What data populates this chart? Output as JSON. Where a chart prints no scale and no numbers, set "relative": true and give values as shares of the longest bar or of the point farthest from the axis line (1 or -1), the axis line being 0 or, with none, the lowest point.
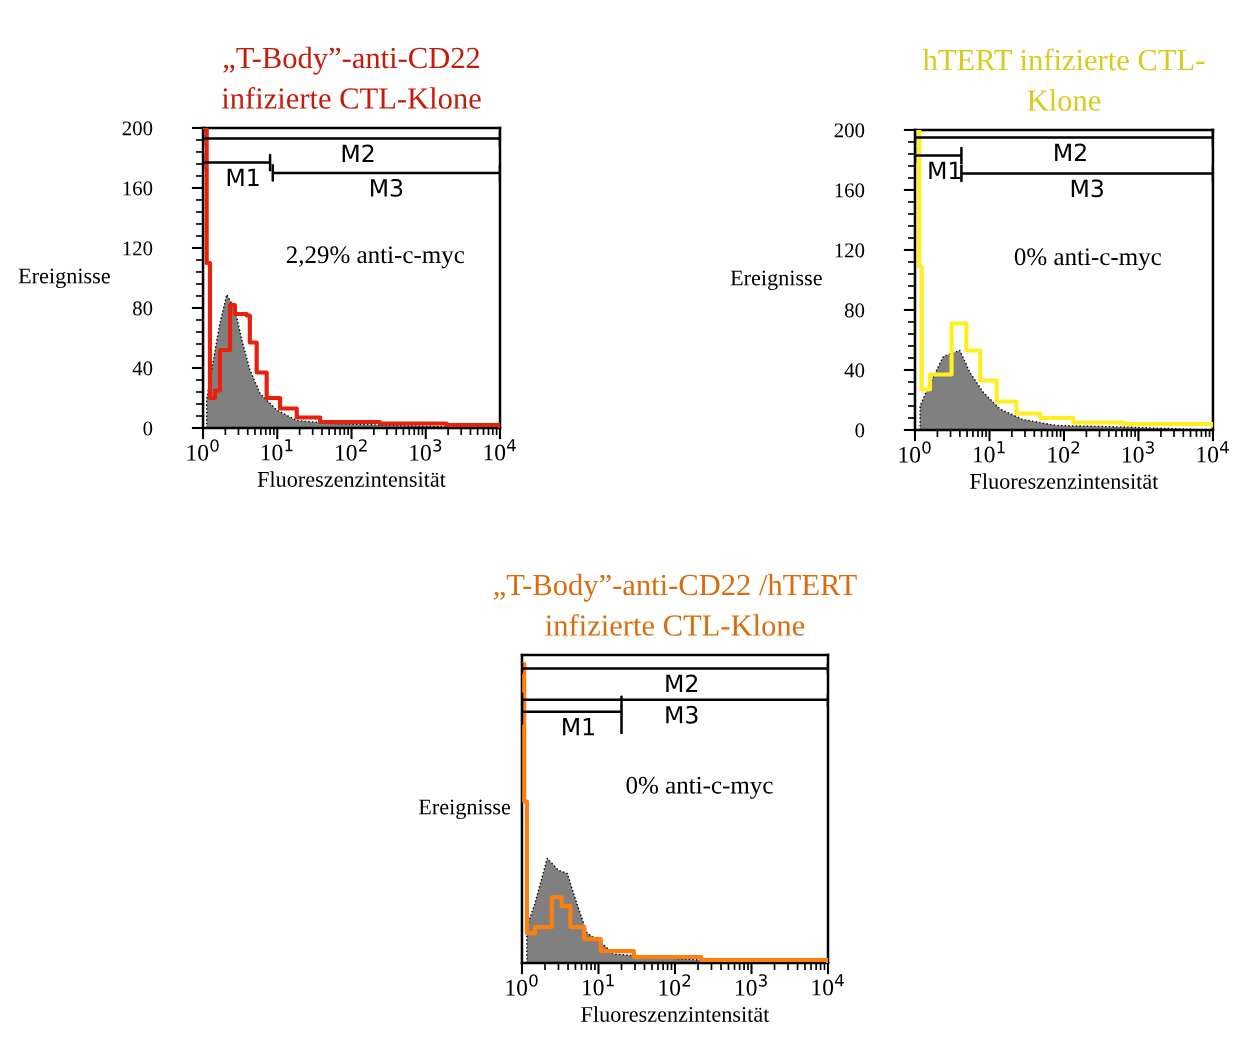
{
  "chart_data": [
    {
      "type": "step",
      "title": "„T-Body”-anti-CD22\ninfizierte CTL-Klone",
      "xlabel": "Fluoreszenzintensität",
      "ylabel": "Ereignisse",
      "log": "x",
      "xlim": [
        1,
        10000
      ],
      "xticks": [
        {
          "value": 1,
          "label": "10$^{0}$"
        },
        {
          "value": 10,
          "label": "10$^{1}$"
        },
        {
          "value": 100,
          "label": "10$^{2}$"
        },
        {
          "value": 1000,
          "label": "10$^{3}$"
        },
        {
          "value": 10000,
          "label": "10$^{4}$"
        }
      ],
      "ylim": [
        0,
        200
      ],
      "yticks": [
        0,
        40,
        80,
        120,
        160,
        200
      ],
      "grid": false,
      "legend": false,
      "series": [
        {
          "type": "area",
          "color": "#808080",
          "x": [
            1.12,
            1.31,
            1.69,
            2.09,
            2.69,
            3.32,
            4.27,
            5.86,
            9.8,
            18.3,
            51,
            241,
            10000
          ],
          "values": [
            19,
            39,
            70,
            89,
            79,
            59,
            39,
            23,
            12,
            5,
            3,
            2,
            0
          ]
        },
        {
          "color": "#e8210c",
          "x": [
            1.06,
            1.12,
            1.24,
            1.45,
            1.69,
            2.31,
            2.69,
            3.88,
            4.27,
            5.28,
            7.2,
            10.9,
            18.3,
            37.8,
            241,
            1910,
            10000
          ],
          "values": [
            199,
            110,
            20,
            25,
            52,
            82,
            76,
            75,
            57,
            37,
            20,
            13,
            7,
            4,
            3,
            2,
            1
          ]
        },
        {
          "type": "line",
          "name": "M1",
          "color": "#000000",
          "x": [
            1,
            1,
            1,
            8,
            8,
            8
          ],
          "values": [
            182,
            172,
            177,
            177,
            182,
            172
          ]
        },
        {
          "type": "line",
          "name": "M2",
          "color": "#000000",
          "x": [
            1,
            1,
            1,
            10000,
            10000,
            10000
          ],
          "values": [
            198,
            188,
            193,
            193,
            198,
            188
          ]
        },
        {
          "type": "line",
          "name": "M3",
          "color": "#000000",
          "x": [
            8.7,
            8.7,
            8.7,
            10000,
            10000,
            10000
          ],
          "values": [
            175,
            165,
            170,
            170,
            175,
            165
          ]
        }
      ],
      "annotations": [
        "2,29% anti-c-myc"
      ]
    },
    {
      "type": "step",
      "title": "hTERT infizierte CTL-\nKlone",
      "xlabel": "Fluoreszenzintensität",
      "ylabel": "Ereignisse",
      "log": "x",
      "xlim": [
        1,
        10000
      ],
      "xticks": [
        {
          "value": 1,
          "label": "10$^{0}$"
        },
        {
          "value": 10,
          "label": "10$^{1}$"
        },
        {
          "value": 100,
          "label": "10$^{2}$"
        },
        {
          "value": 1000,
          "label": "10$^{3}$"
        },
        {
          "value": 10000,
          "label": "10$^{4}$"
        }
      ],
      "ylim": [
        0,
        200
      ],
      "yticks": [
        0,
        40,
        80,
        120,
        160,
        200
      ],
      "grid": false,
      "legend": false,
      "series": [
        {
          "type": "area",
          "color": "#808080",
          "x": [
            1.17,
            1.46,
            2.4,
            4.0,
            5.5,
            8.3,
            13.8,
            28,
            79,
            630,
            10000
          ],
          "values": [
            16,
            27,
            49,
            53,
            38,
            25,
            14,
            7,
            3,
            2,
            0
          ]
        },
        {
          "color": "#ffee22",
          "x": [
            1.05,
            1.14,
            1.23,
            1.59,
            3.1,
            4.9,
            7.5,
            12.5,
            23,
            48,
            133,
            630,
            10000
          ],
          "values": [
            200,
            109,
            27,
            37,
            71,
            53,
            33,
            19,
            11,
            8,
            5,
            4,
            3
          ]
        },
        {
          "type": "line",
          "name": "M1",
          "color": "#000000",
          "x": [
            1,
            1,
            1,
            4.2,
            4.2,
            4.2
          ],
          "values": [
            188,
            178,
            183,
            183,
            188,
            178
          ]
        },
        {
          "type": "line",
          "name": "M2",
          "color": "#000000",
          "x": [
            1,
            1,
            1,
            10000,
            10000,
            10000
          ],
          "values": [
            200,
            190,
            195,
            195,
            200,
            190
          ]
        },
        {
          "type": "line",
          "name": "M3",
          "color": "#000000",
          "x": [
            4.2,
            4.2,
            4.2,
            10000,
            10000,
            10000
          ],
          "values": [
            176,
            166,
            171,
            171,
            176,
            166
          ]
        }
      ],
      "annotations": [
        "0% anti-c-myc"
      ]
    },
    {
      "type": "step",
      "title": "„T-Body”-anti-CD22 /hTERT\ninfizierte CTL-Klone",
      "xlabel": "Fluoreszenzintensität",
      "ylabel": "Ereignisse",
      "log": "x",
      "relative": true,
      "tick_labels": "x",
      "xlim": [
        1,
        10000
      ],
      "xticks": [
        {
          "value": 1,
          "label": "10$^{0}$"
        },
        {
          "value": 10,
          "label": "10$^{1}$"
        },
        {
          "value": 100,
          "label": "10$^{2}$"
        },
        {
          "value": 1000,
          "label": "10$^{3}$"
        },
        {
          "value": 10000,
          "label": "10$^{4}$"
        }
      ],
      "grid": false,
      "legend": false,
      "series": [
        {
          "type": "area",
          "color": "#808080",
          "x": [
            1.16,
            1.48,
            2.14,
            3.0,
            3.9,
            5.2,
            7.1,
            10.7,
            15.8,
            48,
            219,
            10000
          ],
          "values": [
            0.12,
            0.2,
            0.35,
            0.31,
            0.3,
            0.2,
            0.1,
            0.07,
            0.03,
            0.02,
            0.01,
            0
          ]
        },
        {
          "color": "#ff7f0e",
          "x": [
            1.02,
            1.07,
            1.16,
            1.48,
            2.45,
            3.3,
            4.3,
            6.5,
            10.7,
            29,
            219,
            10000
          ],
          "values": [
            1,
            0.54,
            0.1,
            0.12,
            0.22,
            0.19,
            0.12,
            0.08,
            0.04,
            0.02,
            0.01,
            0.002
          ]
        },
        {
          "type": "line",
          "name": "M1",
          "color": "#000000",
          "x": [
            1,
            1,
            1,
            20,
            20,
            20
          ],
          "values": [
            0.88,
            0.8,
            0.84,
            0.84,
            0.89,
            0.77
          ]
        },
        {
          "type": "line",
          "name": "M2",
          "color": "#000000",
          "x": [
            1,
            1,
            1,
            10000,
            10000,
            10000
          ],
          "values": [
            1.0,
            0.97,
            0.985,
            0.985,
            1.0,
            0.97
          ]
        },
        {
          "type": "line",
          "name": "M3",
          "color": "#000000",
          "x": [
            1,
            1,
            1,
            10000,
            10000,
            10000
          ],
          "values": [
            0.9,
            0.86,
            0.88,
            0.88,
            0.9,
            0.86
          ]
        }
      ],
      "annotations": [
        "0% anti-c-myc"
      ]
    }
  ]
}
